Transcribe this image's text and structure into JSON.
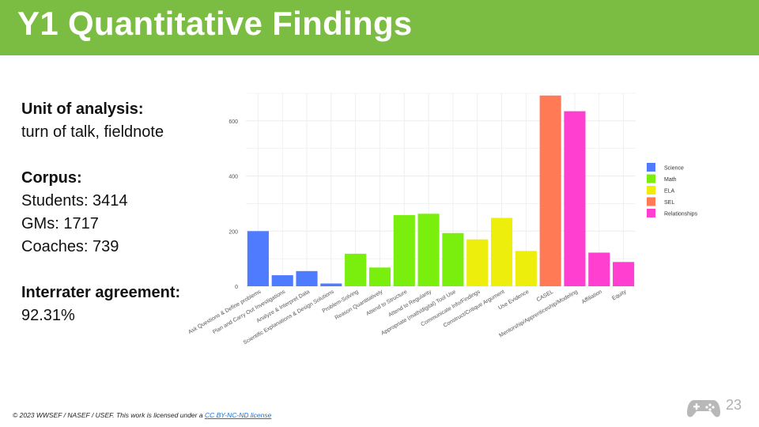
{
  "slide": {
    "title": "Y1 Quantitative Findings",
    "page_number": "23"
  },
  "left_panel": {
    "unit_heading": "Unit of analysis:",
    "unit_value": "turn of talk, fieldnote",
    "corpus_heading": "Corpus:",
    "corpus_students": "Students: 3414",
    "corpus_gms": "GMs: 1717",
    "corpus_coaches": "Coaches: 739",
    "agreement_heading": "Interrater agreement:",
    "agreement_value": "92.31%"
  },
  "footer": {
    "text": "© 2023 WWSEF / NASEF / USEF. This work is licensed under a ",
    "link_text": "CC BY-NC-ND license"
  },
  "chart_data": {
    "type": "bar",
    "categories": [
      "Ask Questions & Define problems",
      "Plan and Carry Out Investigations",
      "Analyze & Interpret Data",
      "Scientific Explanations & Design Solutions",
      "Problem-Solving",
      "Reason Quantitatively",
      "Attend to Structure",
      "Attend to Regularity",
      "Appropriate (math/digital) Tool Use",
      "Communicate Info/Findings",
      "Construct/Critique Argument",
      "Use Evidence",
      "CASEL",
      "Mentorship/Apprenticeship/Modeling",
      "Affiliation",
      "Equity"
    ],
    "values": [
      200,
      40,
      55,
      10,
      118,
      68,
      258,
      263,
      193,
      170,
      248,
      128,
      692,
      635,
      122,
      88
    ],
    "groups": [
      "Science",
      "Science",
      "Science",
      "Science",
      "Math",
      "Math",
      "Math",
      "Math",
      "Math",
      "ELA",
      "ELA",
      "ELA",
      "SEL",
      "Relationships",
      "Relationships",
      "Relationships"
    ],
    "legend": [
      {
        "name": "Science",
        "color": "#4f7cff"
      },
      {
        "name": "Math",
        "color": "#7aee0c"
      },
      {
        "name": "ELA",
        "color": "#eeee0c"
      },
      {
        "name": "SEL",
        "color": "#ff7a55"
      },
      {
        "name": "Relationships",
        "color": "#ff3fd0"
      }
    ],
    "y_ticks": [
      0,
      200,
      400,
      600
    ],
    "ylim": [
      0,
      700
    ],
    "grid": true,
    "legend_position": "right"
  }
}
